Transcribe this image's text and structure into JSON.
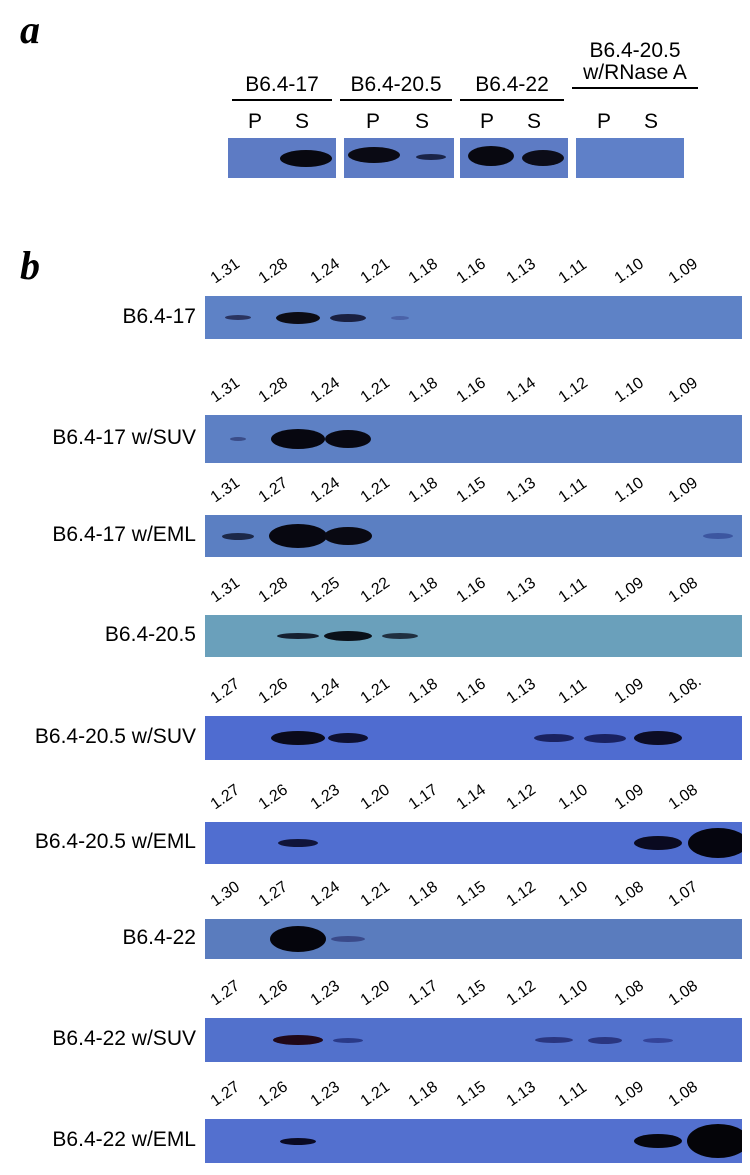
{
  "panel_a": {
    "letter": "a",
    "groups": [
      {
        "label": "B6.4-17",
        "lanes": [
          "P",
          "S"
        ]
      },
      {
        "label": "B6.4-20.5",
        "lanes": [
          "P",
          "S"
        ]
      },
      {
        "label": "B6.4-22",
        "lanes": [
          "P",
          "S"
        ]
      },
      {
        "label_line1": "B6.4-20.5",
        "label_line2": "w/RNase A",
        "lanes": [
          "P",
          "S"
        ]
      }
    ]
  },
  "panel_b": {
    "letter": "b",
    "rows": [
      {
        "label": "B6.4-17",
        "fractions": [
          "1.31",
          "1.28",
          "1.24",
          "1.21",
          "1.18",
          "1.16",
          "1.13",
          "1.11",
          "1.10",
          "1.09"
        ]
      },
      {
        "label": "B6.4-17 w/SUV",
        "fractions": [
          "1.31",
          "1.28",
          "1.24",
          "1.21",
          "1.18",
          "1.16",
          "1.14",
          "1.12",
          "1.10",
          "1.09"
        ]
      },
      {
        "label": "B6.4-17 w/EML",
        "fractions": [
          "1.31",
          "1.27",
          "1.24",
          "1.21",
          "1.18",
          "1.15",
          "1.13",
          "1.11",
          "1.10",
          "1.09"
        ]
      },
      {
        "label": "B6.4-20.5",
        "fractions": [
          "1.31",
          "1.28",
          "1.25",
          "1.22",
          "1.18",
          "1.16",
          "1.13",
          "1.11",
          "1.09",
          "1.08"
        ]
      },
      {
        "label": "B6.4-20.5 w/SUV",
        "fractions": [
          "1.27",
          "1.26",
          "1.24",
          "1.21",
          "1.18",
          "1.16",
          "1.13",
          "1.11",
          "1.09",
          "1.08."
        ]
      },
      {
        "label": "B6.4-20.5 w/EML",
        "fractions": [
          "1.27",
          "1.26",
          "1.23",
          "1.20",
          "1.17",
          "1.14",
          "1.12",
          "1.10",
          "1.09",
          "1.08"
        ]
      },
      {
        "label": "B6.4-22",
        "fractions": [
          "1.30",
          "1.27",
          "1.24",
          "1.21",
          "1.18",
          "1.15",
          "1.12",
          "1.10",
          "1.08",
          "1.07"
        ]
      },
      {
        "label": "B6.4-22 w/SUV",
        "fractions": [
          "1.27",
          "1.26",
          "1.23",
          "1.20",
          "1.17",
          "1.15",
          "1.12",
          "1.10",
          "1.08",
          "1.08"
        ]
      },
      {
        "label": "B6.4-22 w/EML",
        "fractions": [
          "1.27",
          "1.26",
          "1.23",
          "1.21",
          "1.18",
          "1.15",
          "1.13",
          "1.11",
          "1.09",
          "1.08"
        ]
      }
    ]
  }
}
